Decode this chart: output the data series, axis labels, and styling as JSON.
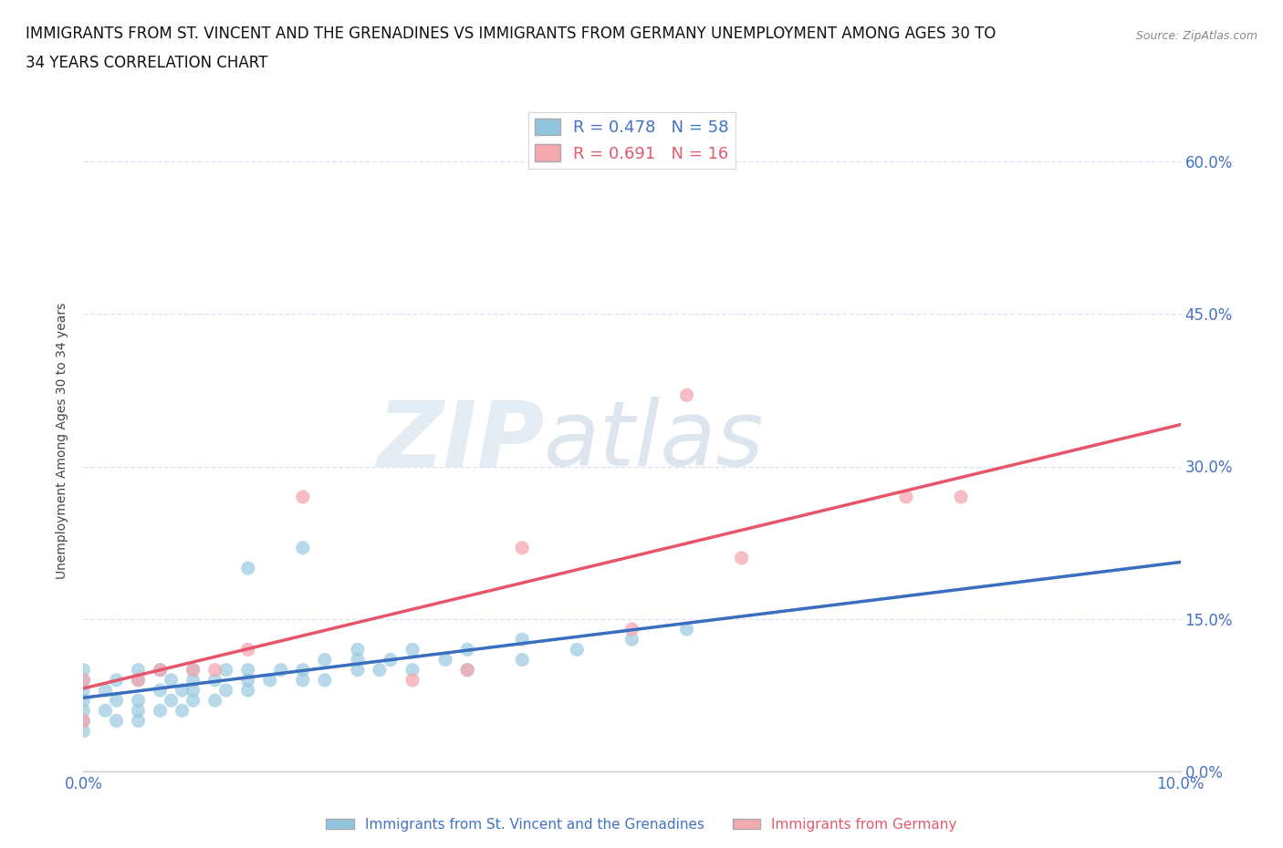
{
  "title_line1": "IMMIGRANTS FROM ST. VINCENT AND THE GRENADINES VS IMMIGRANTS FROM GERMANY UNEMPLOYMENT AMONG AGES 30 TO",
  "title_line2": "34 YEARS CORRELATION CHART",
  "source": "Source: ZipAtlas.com",
  "ylabel": "Unemployment Among Ages 30 to 34 years",
  "legend1_label": "Immigrants from St. Vincent and the Grenadines",
  "legend2_label": "Immigrants from Germany",
  "r1": 0.478,
  "n1": 58,
  "r2": 0.691,
  "n2": 16,
  "color1": "#92c5de",
  "color2": "#f4a8b0",
  "trendline1_color": "#3a6fbf",
  "trendline2_color": "#e8546a",
  "xlim": [
    0.0,
    0.1
  ],
  "ylim": [
    0.0,
    0.65
  ],
  "yticks": [
    0.0,
    0.15,
    0.3,
    0.45,
    0.6
  ],
  "ytick_labels": [
    "0.0%",
    "15.0%",
    "30.0%",
    "45.0%",
    "60.0%"
  ],
  "xtick_positions": [
    0.0,
    0.01,
    0.02,
    0.03,
    0.04,
    0.05,
    0.06,
    0.07,
    0.08,
    0.09,
    0.1
  ],
  "xtick_labels": [
    "0.0%",
    "",
    "",
    "",
    "",
    "",
    "",
    "",
    "",
    "",
    "10.0%"
  ],
  "scatter1_x": [
    0.0,
    0.0,
    0.0,
    0.0,
    0.0,
    0.0,
    0.0,
    0.002,
    0.002,
    0.003,
    0.003,
    0.003,
    0.005,
    0.005,
    0.005,
    0.005,
    0.005,
    0.007,
    0.007,
    0.007,
    0.008,
    0.008,
    0.009,
    0.009,
    0.01,
    0.01,
    0.01,
    0.01,
    0.012,
    0.012,
    0.013,
    0.013,
    0.015,
    0.015,
    0.015,
    0.015,
    0.017,
    0.018,
    0.02,
    0.02,
    0.02,
    0.022,
    0.022,
    0.025,
    0.025,
    0.025,
    0.027,
    0.028,
    0.03,
    0.03,
    0.033,
    0.035,
    0.035,
    0.04,
    0.04,
    0.045,
    0.05,
    0.055
  ],
  "scatter1_y": [
    0.04,
    0.05,
    0.06,
    0.07,
    0.08,
    0.09,
    0.1,
    0.06,
    0.08,
    0.05,
    0.07,
    0.09,
    0.05,
    0.06,
    0.07,
    0.09,
    0.1,
    0.06,
    0.08,
    0.1,
    0.07,
    0.09,
    0.06,
    0.08,
    0.07,
    0.08,
    0.09,
    0.1,
    0.07,
    0.09,
    0.08,
    0.1,
    0.08,
    0.09,
    0.1,
    0.2,
    0.09,
    0.1,
    0.09,
    0.1,
    0.22,
    0.09,
    0.11,
    0.1,
    0.11,
    0.12,
    0.1,
    0.11,
    0.1,
    0.12,
    0.11,
    0.1,
    0.12,
    0.11,
    0.13,
    0.12,
    0.13,
    0.14
  ],
  "scatter2_x": [
    0.0,
    0.0,
    0.005,
    0.007,
    0.01,
    0.012,
    0.015,
    0.02,
    0.03,
    0.035,
    0.04,
    0.05,
    0.055,
    0.06,
    0.075,
    0.08
  ],
  "scatter2_y": [
    0.05,
    0.09,
    0.09,
    0.1,
    0.1,
    0.1,
    0.12,
    0.27,
    0.09,
    0.1,
    0.22,
    0.14,
    0.37,
    0.21,
    0.27,
    0.27
  ],
  "background_color": "#ffffff",
  "grid_color": "#dde5f0",
  "watermark_zip": "ZIP",
  "watermark_atlas": "atlas",
  "title_fontsize": 12,
  "axis_label_fontsize": 10,
  "tick_fontsize": 12,
  "legend_fontsize": 13
}
